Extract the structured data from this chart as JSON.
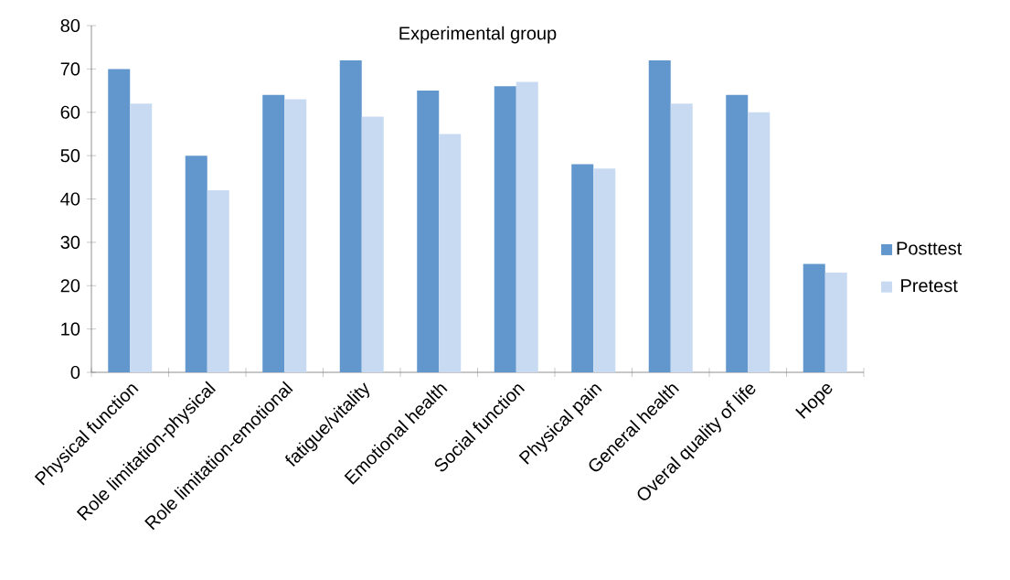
{
  "chart_data": {
    "type": "bar",
    "title": "Experimental group",
    "categories": [
      "Physical function",
      "Role limitation-physical",
      "Role limitation-emotional",
      "fatigue/vitality",
      "Emotional health",
      "Social function",
      "Physical pain",
      "General health",
      "Overal quality of life",
      "Hope"
    ],
    "series": [
      {
        "name": "Posttest",
        "color": "#6197cd",
        "values": [
          70,
          50,
          64,
          72,
          65,
          66,
          48,
          72,
          64,
          25
        ]
      },
      {
        "name": "Pretest",
        "color": "#c7daf1",
        "values": [
          62,
          42,
          63,
          59,
          55,
          67,
          47,
          62,
          60,
          23
        ]
      }
    ],
    "ylim": [
      0,
      80
    ],
    "yticks": [
      0,
      10,
      20,
      30,
      40,
      50,
      60,
      70,
      80
    ],
    "grid": false,
    "legend": "right"
  }
}
